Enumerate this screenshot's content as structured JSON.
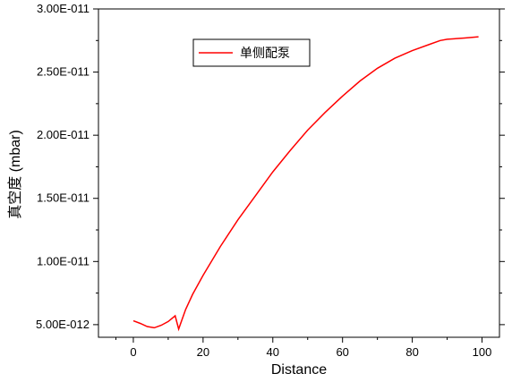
{
  "chart_data": {
    "type": "line",
    "title": "",
    "xlabel": "Distance",
    "ylabel": "真空度 (mbar)",
    "xlim": [
      -10,
      105
    ],
    "ylim": [
      4e-12,
      3e-11
    ],
    "x_ticks": [
      0,
      20,
      40,
      60,
      80,
      100
    ],
    "x_tick_labels": [
      "0",
      "20",
      "40",
      "60",
      "80",
      "100"
    ],
    "y_ticks": [
      5e-12,
      1e-11,
      1.5e-11,
      2e-11,
      2.5e-11,
      3e-11
    ],
    "y_tick_labels": [
      "5.00E-012",
      "1.00E-011",
      "1.50E-011",
      "2.00E-011",
      "2.50E-011",
      "3.00E-011"
    ],
    "grid": false,
    "legend": {
      "position": "top-center"
    },
    "series": [
      {
        "name": "单侧配泵",
        "color": "#ff0000",
        "x": [
          0,
          2,
          4,
          6,
          8,
          10,
          12,
          13,
          15,
          17,
          20,
          25,
          30,
          35,
          40,
          45,
          50,
          55,
          60,
          65,
          70,
          75,
          80,
          85,
          88,
          90,
          95,
          99
        ],
        "y": [
          5.3e-12,
          5.1e-12,
          4.85e-12,
          4.75e-12,
          4.95e-12,
          5.25e-12,
          5.7e-12,
          4.65e-12,
          6.2e-12,
          7.4e-12,
          8.9e-12,
          1.12e-11,
          1.33e-11,
          1.52e-11,
          1.71e-11,
          1.88e-11,
          2.04e-11,
          2.18e-11,
          2.31e-11,
          2.43e-11,
          2.53e-11,
          2.61e-11,
          2.67e-11,
          2.72e-11,
          2.75e-11,
          2.76e-11,
          2.77e-11,
          2.78e-11
        ]
      }
    ]
  }
}
